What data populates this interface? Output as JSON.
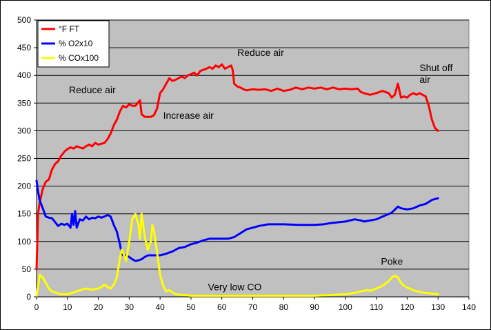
{
  "chart_data": {
    "type": "line",
    "title": "",
    "xlabel": "",
    "ylabel": "",
    "xlim": [
      0,
      140
    ],
    "ylim": [
      0,
      500
    ],
    "x_ticks": [
      0,
      10,
      20,
      30,
      40,
      50,
      60,
      70,
      80,
      90,
      100,
      110,
      120,
      130,
      140
    ],
    "y_ticks": [
      0,
      50,
      100,
      150,
      200,
      250,
      300,
      350,
      400,
      450,
      500
    ],
    "grid": "horizontal",
    "plot_background": "#c0c0c0",
    "legend_position": "top-left",
    "series": [
      {
        "name": "°F FT",
        "color": "#ff0000",
        "points": [
          [
            0,
            50
          ],
          [
            0.5,
            150
          ],
          [
            1,
            170
          ],
          [
            2,
            195
          ],
          [
            3,
            208
          ],
          [
            4,
            212
          ],
          [
            5,
            230
          ],
          [
            6,
            240
          ],
          [
            7,
            245
          ],
          [
            8,
            255
          ],
          [
            9,
            262
          ],
          [
            10,
            267
          ],
          [
            11,
            270
          ],
          [
            12,
            268
          ],
          [
            13,
            272
          ],
          [
            14,
            270
          ],
          [
            15,
            268
          ],
          [
            16,
            272
          ],
          [
            17,
            275
          ],
          [
            18,
            272
          ],
          [
            19,
            278
          ],
          [
            20,
            275
          ],
          [
            22,
            278
          ],
          [
            23,
            285
          ],
          [
            24,
            295
          ],
          [
            25,
            310
          ],
          [
            26,
            320
          ],
          [
            27,
            335
          ],
          [
            28,
            345
          ],
          [
            29,
            342
          ],
          [
            30,
            348
          ],
          [
            31,
            345
          ],
          [
            32,
            345
          ],
          [
            33,
            352
          ],
          [
            33.5,
            355
          ],
          [
            34,
            330
          ],
          [
            35,
            325
          ],
          [
            36,
            325
          ],
          [
            37,
            325
          ],
          [
            38,
            328
          ],
          [
            39,
            340
          ],
          [
            40,
            368
          ],
          [
            41,
            375
          ],
          [
            42,
            385
          ],
          [
            43,
            395
          ],
          [
            44,
            390
          ],
          [
            45,
            392
          ],
          [
            46,
            395
          ],
          [
            47,
            398
          ],
          [
            48,
            395
          ],
          [
            49,
            400
          ],
          [
            50,
            402
          ],
          [
            51,
            405
          ],
          [
            52,
            400
          ],
          [
            53,
            408
          ],
          [
            54,
            410
          ],
          [
            55,
            412
          ],
          [
            56,
            415
          ],
          [
            57,
            412
          ],
          [
            58,
            418
          ],
          [
            59,
            415
          ],
          [
            60,
            420
          ],
          [
            61,
            412
          ],
          [
            62,
            415
          ],
          [
            63,
            418
          ],
          [
            63.5,
            410
          ],
          [
            64,
            385
          ],
          [
            65,
            380
          ],
          [
            66,
            378
          ],
          [
            67,
            375
          ],
          [
            68,
            373
          ],
          [
            70,
            375
          ],
          [
            72,
            374
          ],
          [
            74,
            375
          ],
          [
            76,
            372
          ],
          [
            78,
            376
          ],
          [
            80,
            372
          ],
          [
            82,
            374
          ],
          [
            84,
            378
          ],
          [
            86,
            375
          ],
          [
            88,
            378
          ],
          [
            90,
            376
          ],
          [
            92,
            378
          ],
          [
            94,
            375
          ],
          [
            96,
            378
          ],
          [
            98,
            375
          ],
          [
            100,
            376
          ],
          [
            102,
            375
          ],
          [
            104,
            376
          ],
          [
            105,
            370
          ],
          [
            106,
            368
          ],
          [
            108,
            365
          ],
          [
            110,
            368
          ],
          [
            112,
            372
          ],
          [
            114,
            368
          ],
          [
            115,
            360
          ],
          [
            116,
            365
          ],
          [
            117,
            385
          ],
          [
            118,
            360
          ],
          [
            119,
            362
          ],
          [
            120,
            360
          ],
          [
            121,
            365
          ],
          [
            122,
            368
          ],
          [
            123,
            365
          ],
          [
            124,
            368
          ],
          [
            125,
            365
          ],
          [
            126,
            362
          ],
          [
            127,
            345
          ],
          [
            128,
            320
          ],
          [
            129,
            305
          ],
          [
            130,
            300
          ]
        ]
      },
      {
        "name": "% O2x10",
        "color": "#0000ff",
        "points": [
          [
            0,
            210
          ],
          [
            0.5,
            190
          ],
          [
            1,
            175
          ],
          [
            2,
            160
          ],
          [
            3,
            145
          ],
          [
            4,
            143
          ],
          [
            5,
            142
          ],
          [
            6,
            135
          ],
          [
            7,
            128
          ],
          [
            8,
            132
          ],
          [
            9,
            130
          ],
          [
            10,
            132
          ],
          [
            11,
            125
          ],
          [
            11.5,
            150
          ],
          [
            12,
            130
          ],
          [
            12.5,
            155
          ],
          [
            13,
            125
          ],
          [
            14,
            140
          ],
          [
            15,
            138
          ],
          [
            16,
            145
          ],
          [
            17,
            140
          ],
          [
            18,
            143
          ],
          [
            19,
            142
          ],
          [
            20,
            145
          ],
          [
            21,
            143
          ],
          [
            22,
            145
          ],
          [
            23,
            148
          ],
          [
            24,
            145
          ],
          [
            25,
            130
          ],
          [
            26,
            118
          ],
          [
            27,
            95
          ],
          [
            27.5,
            80
          ],
          [
            28,
            75
          ],
          [
            29,
            75
          ],
          [
            30,
            72
          ],
          [
            31,
            68
          ],
          [
            32,
            65
          ],
          [
            33,
            66
          ],
          [
            34,
            68
          ],
          [
            35,
            72
          ],
          [
            36,
            75
          ],
          [
            38,
            75
          ],
          [
            40,
            75
          ],
          [
            42,
            78
          ],
          [
            44,
            82
          ],
          [
            46,
            88
          ],
          [
            48,
            90
          ],
          [
            50,
            95
          ],
          [
            52,
            98
          ],
          [
            54,
            102
          ],
          [
            56,
            105
          ],
          [
            60,
            105
          ],
          [
            62,
            105
          ],
          [
            64,
            108
          ],
          [
            66,
            115
          ],
          [
            68,
            122
          ],
          [
            70,
            125
          ],
          [
            72,
            128
          ],
          [
            75,
            131
          ],
          [
            80,
            131
          ],
          [
            85,
            130
          ],
          [
            90,
            130
          ],
          [
            93,
            131
          ],
          [
            95,
            133
          ],
          [
            100,
            136
          ],
          [
            103,
            140
          ],
          [
            105,
            138
          ],
          [
            106,
            136
          ],
          [
            110,
            140
          ],
          [
            112,
            145
          ],
          [
            115,
            152
          ],
          [
            117,
            163
          ],
          [
            118,
            160
          ],
          [
            120,
            158
          ],
          [
            122,
            160
          ],
          [
            124,
            165
          ],
          [
            126,
            168
          ],
          [
            128,
            175
          ],
          [
            130,
            178
          ]
        ]
      },
      {
        "name": "% COx100",
        "color": "#ffff00",
        "points": [
          [
            0,
            2
          ],
          [
            0.5,
            20
          ],
          [
            1,
            40
          ],
          [
            2,
            35
          ],
          [
            3,
            25
          ],
          [
            4,
            15
          ],
          [
            5,
            10
          ],
          [
            6,
            8
          ],
          [
            7,
            6
          ],
          [
            8,
            5
          ],
          [
            10,
            5
          ],
          [
            12,
            8
          ],
          [
            14,
            12
          ],
          [
            16,
            15
          ],
          [
            18,
            13
          ],
          [
            20,
            15
          ],
          [
            21,
            18
          ],
          [
            22,
            22
          ],
          [
            23,
            18
          ],
          [
            24,
            15
          ],
          [
            25,
            22
          ],
          [
            26,
            35
          ],
          [
            27,
            70
          ],
          [
            27.5,
            85
          ],
          [
            28,
            80
          ],
          [
            29,
            65
          ],
          [
            30,
            100
          ],
          [
            31,
            140
          ],
          [
            32,
            150
          ],
          [
            33,
            130
          ],
          [
            33.5,
            105
          ],
          [
            34,
            150
          ],
          [
            35,
            110
          ],
          [
            36,
            85
          ],
          [
            37,
            100
          ],
          [
            37.5,
            130
          ],
          [
            38,
            120
          ],
          [
            39,
            80
          ],
          [
            40,
            40
          ],
          [
            41,
            20
          ],
          [
            42,
            10
          ],
          [
            43,
            12
          ],
          [
            44,
            8
          ],
          [
            45,
            5
          ],
          [
            46,
            4
          ],
          [
            48,
            3
          ],
          [
            50,
            2
          ],
          [
            55,
            2
          ],
          [
            60,
            2
          ],
          [
            65,
            2
          ],
          [
            70,
            2
          ],
          [
            80,
            2
          ],
          [
            90,
            2
          ],
          [
            95,
            3
          ],
          [
            100,
            5
          ],
          [
            103,
            7
          ],
          [
            105,
            10
          ],
          [
            107,
            12
          ],
          [
            108,
            11
          ],
          [
            110,
            15
          ],
          [
            112,
            20
          ],
          [
            114,
            28
          ],
          [
            115,
            35
          ],
          [
            116,
            38
          ],
          [
            117,
            35
          ],
          [
            118,
            25
          ],
          [
            119,
            20
          ],
          [
            120,
            17
          ],
          [
            122,
            12
          ],
          [
            124,
            9
          ],
          [
            126,
            7
          ],
          [
            128,
            6
          ],
          [
            130,
            5
          ]
        ]
      }
    ],
    "annotations": [
      {
        "text": "Reduce air",
        "x": 10.5,
        "y": 368,
        "lines": [
          "Reduce air"
        ]
      },
      {
        "text": "Increase air",
        "x": 41,
        "y": 322,
        "lines": [
          "Increase air"
        ]
      },
      {
        "text": "Reduce air",
        "x": 65,
        "y": 435,
        "lines": [
          "Reduce air"
        ]
      },
      {
        "text": "Shut off air",
        "x": 124,
        "y": 408,
        "lines": [
          "Shut off",
          "air"
        ]
      },
      {
        "text": "Very low CO",
        "x": 55.5,
        "y": 12,
        "lines": [
          "Very low CO"
        ]
      },
      {
        "text": "Poke",
        "x": 111.5,
        "y": 58,
        "lines": [
          "Poke"
        ]
      }
    ]
  }
}
